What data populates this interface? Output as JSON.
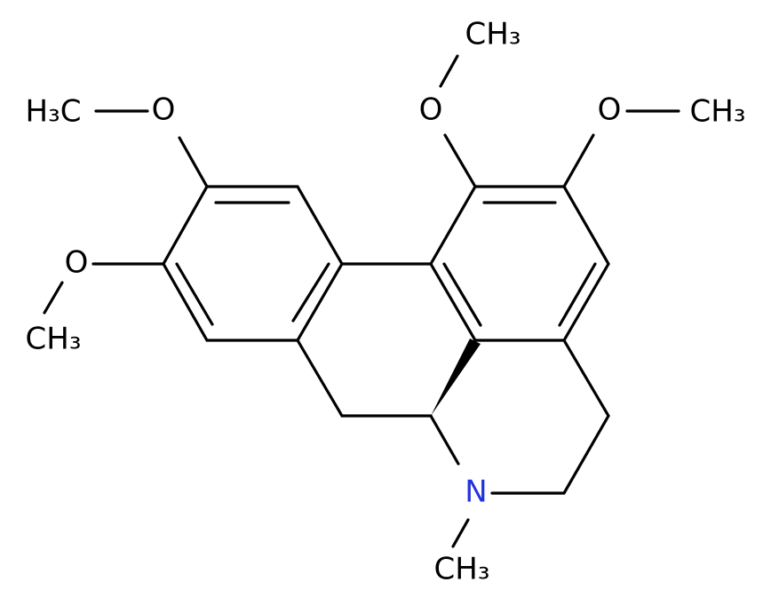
{
  "atoms": [
    {
      "label": "H₃C"
    },
    {
      "label": "O"
    },
    {
      "label": "O"
    },
    {
      "label": "CH₃"
    },
    {
      "label": "O"
    },
    {
      "label": "CH₃"
    },
    {
      "label": "O"
    },
    {
      "label": "CH₃"
    },
    {
      "label": "N"
    },
    {
      "label": "CH₃"
    }
  ]
}
